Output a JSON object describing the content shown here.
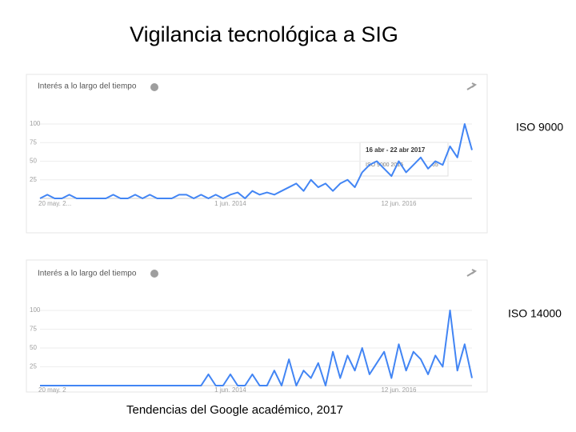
{
  "title": "Vigilancia tecnológica a SIG",
  "caption": "Tendencias del Google académico, 2017",
  "chart_data": [
    {
      "type": "line",
      "header": "Interés a lo largo del tiempo",
      "categories": [
        "20 may. 2...",
        null,
        null,
        null,
        null,
        null,
        null,
        null,
        null,
        null,
        null,
        null,
        null,
        null,
        null,
        null,
        null,
        null,
        null,
        null,
        null,
        null,
        null,
        null,
        null,
        null,
        "1 jun. 2014",
        null,
        null,
        null,
        null,
        null,
        null,
        null,
        null,
        null,
        null,
        null,
        null,
        null,
        null,
        null,
        null,
        null,
        null,
        null,
        null,
        null,
        null,
        "12 jun. 2016",
        null,
        null,
        null,
        null,
        null,
        null,
        null,
        null,
        null,
        null
      ],
      "series": [
        {
          "name": "ISO 9000",
          "color": "#4285f4",
          "values": [
            0,
            5,
            0,
            0,
            5,
            0,
            0,
            0,
            0,
            0,
            5,
            0,
            0,
            5,
            0,
            5,
            0,
            0,
            0,
            5,
            5,
            0,
            5,
            0,
            5,
            0,
            5,
            8,
            0,
            10,
            5,
            8,
            5,
            10,
            15,
            20,
            10,
            25,
            15,
            20,
            10,
            20,
            25,
            15,
            35,
            45,
            50,
            40,
            30,
            50,
            35,
            45,
            55,
            40,
            50,
            45,
            70,
            55,
            100,
            65
          ]
        }
      ],
      "ylim": [
        0,
        100
      ],
      "yticks": [
        25,
        50,
        75,
        100
      ],
      "grid": true,
      "tooltip": {
        "date": "16 abr - 22 abr 2017",
        "series": "ISO 9000 2015",
        "value": 65
      }
    },
    {
      "type": "line",
      "header": "Interés a lo largo del tiempo",
      "categories": [
        "20 may. 2",
        null,
        null,
        null,
        null,
        null,
        null,
        null,
        null,
        null,
        null,
        null,
        null,
        null,
        null,
        null,
        null,
        null,
        null,
        null,
        null,
        null,
        null,
        null,
        null,
        null,
        "1 jun. 2014",
        null,
        null,
        null,
        null,
        null,
        null,
        null,
        null,
        null,
        null,
        null,
        null,
        null,
        null,
        null,
        null,
        null,
        null,
        null,
        null,
        null,
        null,
        "12 jun. 2016",
        null,
        null,
        null,
        null,
        null,
        null,
        null,
        null,
        null,
        null
      ],
      "series": [
        {
          "name": "ISO 14000",
          "color": "#4285f4",
          "values": [
            0,
            0,
            0,
            0,
            0,
            0,
            0,
            0,
            0,
            0,
            0,
            0,
            0,
            0,
            0,
            0,
            0,
            0,
            0,
            0,
            0,
            0,
            0,
            15,
            0,
            0,
            15,
            0,
            0,
            15,
            0,
            0,
            20,
            0,
            35,
            0,
            20,
            10,
            30,
            0,
            45,
            10,
            40,
            20,
            50,
            15,
            30,
            45,
            10,
            55,
            20,
            45,
            35,
            15,
            40,
            25,
            100,
            20,
            55,
            10
          ]
        }
      ],
      "ylim": [
        0,
        100
      ],
      "yticks": [
        25,
        50,
        75,
        100
      ],
      "grid": true
    }
  ]
}
